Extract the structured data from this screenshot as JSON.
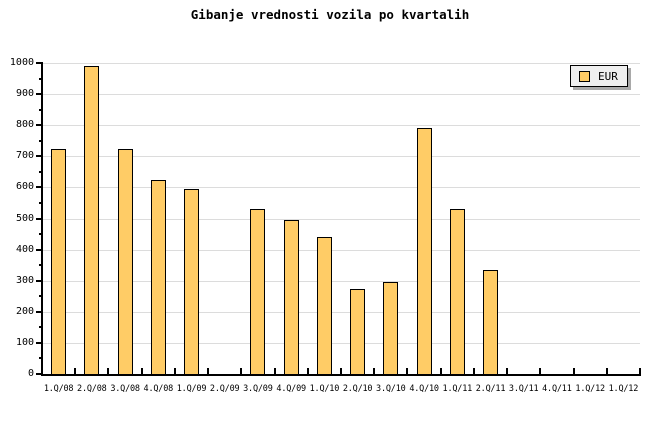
{
  "title": "Gibanje vrednosti vozila po kvartalih",
  "legend": {
    "label": "EUR"
  },
  "colors": {
    "background": "#FFFFFF",
    "bar_fill": "#FFCC66",
    "bar_border": "#000000",
    "gridline": "#DCDCDC",
    "axis": "#000000",
    "text": "#000000",
    "legend_bg": "#EFEFEF",
    "legend_border": "#000000",
    "legend_shadow": "#A9A9A9"
  },
  "chart_data": {
    "type": "bar",
    "title": "Gibanje vrednosti vozila po kvartalih",
    "categories": [
      "1.Q/08",
      "2.Q/08",
      "3.Q/08",
      "4.Q/08",
      "1.Q/09",
      "2.Q/09",
      "3.Q/09",
      "4.Q/09",
      "1.Q/10",
      "2.Q/10",
      "3.Q/10",
      "4.Q/10",
      "1.Q/11",
      "2.Q/11",
      "3.Q/11",
      "4.Q/11",
      "1.Q/12",
      "1.Q/12"
    ],
    "series": [
      {
        "name": "EUR",
        "values": [
          725,
          990,
          725,
          625,
          595,
          0,
          530,
          495,
          440,
          275,
          295,
          790,
          530,
          335,
          0,
          0,
          0,
          0
        ]
      }
    ],
    "xlabel": "",
    "ylabel": "",
    "ylim": [
      0,
      1000
    ],
    "yticks": [
      0,
      100,
      200,
      300,
      400,
      500,
      600,
      700,
      800,
      900,
      1000
    ],
    "minor_ytick_step": 50,
    "grid": true,
    "legend_position": "top-right"
  }
}
